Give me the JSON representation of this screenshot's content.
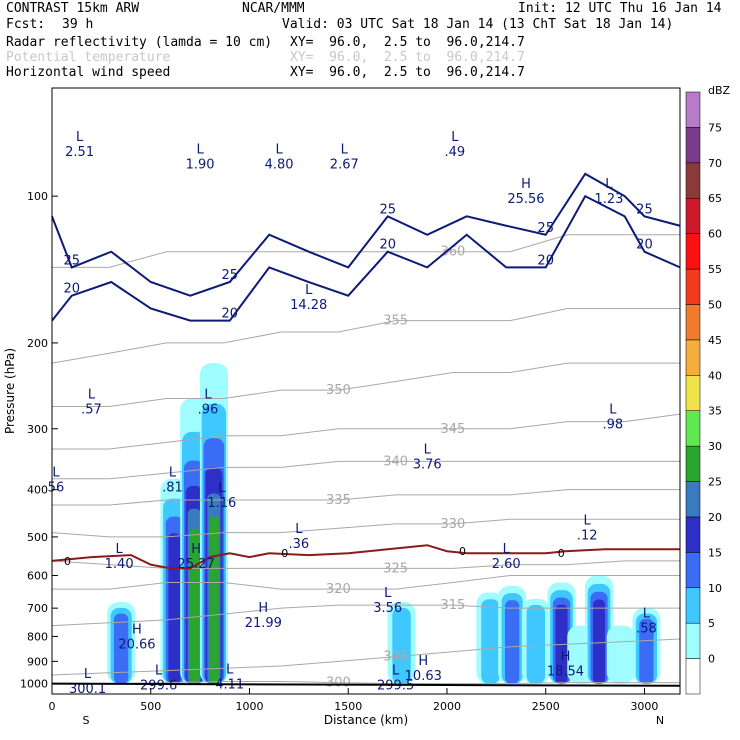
{
  "header": {
    "model": "CONTRAST 15km ARW",
    "institution": "NCAR/MMM",
    "init": "Init: 12 UTC Thu 16 Jan 14",
    "fcst_label": "Fcst:",
    "fcst_value": "39 h",
    "valid": "Valid: 03 UTC Sat 18 Jan 14 (13 ChT Sat 18 Jan 14)",
    "fields": [
      {
        "name": "Radar reflectivity (lamda = 10 cm)",
        "xy": "XY=  96.0,  2.5 to  96.0,214.7"
      },
      {
        "name": "Potential temperature",
        "xy": "XY=  96.0,  2.5 to  96.0,214.7"
      },
      {
        "name": "Horizontal wind speed",
        "xy": "XY=  96.0,  2.5 to  96.0,214.7"
      }
    ]
  },
  "chart_data": {
    "type": "heatmap",
    "xlabel": "Distance (km)",
    "ylabel": "Pressure (hPa)",
    "xlim": [
      0,
      3180
    ],
    "ylim": [
      1050,
      60
    ],
    "xticks": [
      0,
      500,
      1000,
      1500,
      2000,
      2500,
      3000
    ],
    "yticks": [
      100,
      200,
      300,
      400,
      500,
      600,
      700,
      800,
      900,
      1000
    ],
    "x_end_labels": {
      "left": "S",
      "right": "N"
    },
    "colorbar": {
      "unit": "dBZ",
      "levels": [
        0,
        5,
        10,
        15,
        20,
        25,
        30,
        35,
        40,
        45,
        50,
        55,
        60,
        65,
        70,
        75
      ],
      "colors": [
        "#ffffff",
        "#9ffcff",
        "#3fc8ff",
        "#3b6cf5",
        "#2d2fc7",
        "#3a7bbf",
        "#2aa52e",
        "#5fe84f",
        "#f0e24a",
        "#f5ae3c",
        "#f27a2e",
        "#f23a1d",
        "#ff1010",
        "#cc1a2a",
        "#8b3a3a",
        "#7b3b8b",
        "#b77bc7"
      ]
    },
    "reflectivity_columns": [
      {
        "x": 350,
        "p_top": 680,
        "p_bot": 1000,
        "max_dbz": 15
      },
      {
        "x": 620,
        "p_top": 380,
        "p_bot": 1000,
        "max_dbz": 20
      },
      {
        "x": 720,
        "p_top": 260,
        "p_bot": 1000,
        "max_dbz": 30
      },
      {
        "x": 820,
        "p_top": 220,
        "p_bot": 1000,
        "max_dbz": 30
      },
      {
        "x": 1770,
        "p_top": 680,
        "p_bot": 1000,
        "max_dbz": 10
      },
      {
        "x": 2220,
        "p_top": 650,
        "p_bot": 1000,
        "max_dbz": 10
      },
      {
        "x": 2330,
        "p_top": 630,
        "p_bot": 1000,
        "max_dbz": 15
      },
      {
        "x": 2450,
        "p_top": 670,
        "p_bot": 1000,
        "max_dbz": 10
      },
      {
        "x": 2580,
        "p_top": 620,
        "p_bot": 1000,
        "max_dbz": 20
      },
      {
        "x": 2680,
        "p_top": 760,
        "p_bot": 1000,
        "max_dbz": 5
      },
      {
        "x": 2770,
        "p_top": 600,
        "p_bot": 1000,
        "max_dbz": 20
      },
      {
        "x": 2880,
        "p_top": 760,
        "p_bot": 1000,
        "max_dbz": 5
      },
      {
        "x": 3010,
        "p_top": 700,
        "p_bot": 1000,
        "max_dbz": 15
      }
    ],
    "isentropes": [
      {
        "theta": 300,
        "p": [
          1000,
          1000,
          995,
          990,
          990,
          995,
          1000,
          1000,
          1000,
          995,
          995,
          995
        ],
        "label": "300"
      },
      {
        "theta": 305,
        "p": [
          960,
          950,
          940,
          930,
          920,
          900,
          880,
          860,
          840,
          830,
          820,
          810
        ],
        "label": "305"
      },
      {
        "theta": 315,
        "p": [
          760,
          750,
          740,
          720,
          700,
          690,
          690,
          690,
          700,
          700,
          700,
          700
        ],
        "label": "315"
      },
      {
        "theta": 320,
        "p": [
          640,
          640,
          620,
          620,
          640,
          640,
          640,
          620,
          600,
          600,
          600,
          600
        ],
        "label": "320"
      },
      {
        "theta": 325,
        "p": [
          560,
          570,
          580,
          580,
          580,
          580,
          580,
          580,
          570,
          570,
          560,
          560
        ],
        "label": "325"
      },
      {
        "theta": 330,
        "p": [
          490,
          500,
          500,
          490,
          490,
          480,
          470,
          470,
          460,
          460,
          460,
          460
        ],
        "label": "330"
      },
      {
        "theta": 335,
        "p": [
          430,
          430,
          420,
          420,
          420,
          420,
          410,
          410,
          410,
          400,
          400,
          400
        ],
        "label": "335"
      },
      {
        "theta": 340,
        "p": [
          380,
          380,
          370,
          360,
          360,
          350,
          350,
          350,
          350,
          350,
          350,
          350
        ],
        "label": "340"
      },
      {
        "theta": 345,
        "p": [
          330,
          330,
          320,
          310,
          310,
          300,
          300,
          300,
          300,
          290,
          290,
          280
        ],
        "label": "345"
      },
      {
        "theta": 350,
        "p": [
          270,
          270,
          260,
          260,
          250,
          250,
          240,
          230,
          230,
          220,
          220,
          220
        ],
        "label": "350"
      },
      {
        "theta": 355,
        "p": [
          220,
          210,
          200,
          200,
          190,
          190,
          180,
          180,
          180,
          170,
          170,
          170
        ],
        "label": "355"
      },
      {
        "theta": 360,
        "p": [
          140,
          140,
          130,
          130,
          130,
          130,
          130,
          130,
          130,
          120,
          120,
          120
        ],
        "label": "360"
      }
    ],
    "isentrope_x": [
      0,
      290,
      580,
      870,
      1160,
      1450,
      1740,
      2030,
      2320,
      2610,
      2900,
      3180
    ],
    "freezing_level": {
      "label": "0",
      "x": [
        0,
        200,
        400,
        500,
        600,
        700,
        800,
        900,
        1000,
        1100,
        1300,
        1500,
        1700,
        1900,
        2000,
        2100,
        2300,
        2500,
        2600,
        2800,
        3000,
        3180
      ],
      "p": [
        560,
        550,
        545,
        570,
        580,
        580,
        550,
        540,
        550,
        540,
        545,
        540,
        530,
        520,
        535,
        540,
        540,
        540,
        535,
        530,
        530,
        530
      ]
    },
    "wind_contours": [
      {
        "level": 20,
        "x": [
          0,
          100,
          300,
          500,
          700,
          900,
          1100,
          1300,
          1500,
          1700,
          1900,
          2100,
          2300,
          2500,
          2700,
          2900,
          3000,
          3180
        ],
        "p": [
          180,
          160,
          150,
          170,
          180,
          180,
          140,
          150,
          160,
          130,
          140,
          120,
          140,
          140,
          100,
          110,
          130,
          140
        ]
      },
      {
        "level": 25,
        "x": [
          0,
          100,
          300,
          500,
          700,
          900,
          1100,
          1300,
          1500,
          1700,
          1900,
          2100,
          2300,
          2500,
          2700,
          2900,
          3000,
          3180
        ],
        "p": [
          110,
          140,
          130,
          150,
          160,
          150,
          120,
          130,
          140,
          110,
          120,
          110,
          115,
          120,
          90,
          100,
          110,
          115
        ]
      }
    ],
    "annotations": [
      {
        "text": "L",
        "value": "2.51",
        "x": 140,
        "p": 80
      },
      {
        "text": "L",
        "value": "1.90",
        "x": 750,
        "p": 85
      },
      {
        "text": "L",
        "value": "4.80",
        "x": 1150,
        "p": 85
      },
      {
        "text": "L",
        "value": "2.67",
        "x": 1480,
        "p": 85
      },
      {
        "text": "L",
        "value": ".49",
        "x": 2040,
        "p": 80
      },
      {
        "text": "H",
        "value": "25.56",
        "x": 2400,
        "p": 100
      },
      {
        "text": "L",
        "value": "1.23",
        "x": 2820,
        "p": 100
      },
      {
        "text": "L",
        "value": "14.28",
        "x": 1300,
        "p": 165
      },
      {
        "text": "L",
        "value": ".57",
        "x": 200,
        "p": 270
      },
      {
        "text": "L",
        "value": ".96",
        "x": 790,
        "p": 270
      },
      {
        "text": "L",
        "value": ".98",
        "x": 2840,
        "p": 290
      },
      {
        "text": "L",
        "value": "3.76",
        "x": 1900,
        "p": 350
      },
      {
        "text": "L",
        "value": "56",
        "x": 20,
        "p": 390
      },
      {
        "text": "L",
        "value": ".81",
        "x": 610,
        "p": 390
      },
      {
        "text": "L",
        "value": "1.16",
        "x": 860,
        "p": 420
      },
      {
        "text": "L",
        "value": ".12",
        "x": 2710,
        "p": 490
      },
      {
        "text": "L",
        "value": ".36",
        "x": 1250,
        "p": 510
      },
      {
        "text": "L",
        "value": "1.40",
        "x": 340,
        "p": 560
      },
      {
        "text": "H",
        "value": "25.27",
        "x": 730,
        "p": 560
      },
      {
        "text": "L",
        "value": "2.60",
        "x": 2300,
        "p": 560
      },
      {
        "text": "L",
        "value": "3.56",
        "x": 1700,
        "p": 690
      },
      {
        "text": "H",
        "value": "21.99",
        "x": 1070,
        "p": 740
      },
      {
        "text": "L",
        "value": ".58",
        "x": 3010,
        "p": 760
      },
      {
        "text": "H",
        "value": "20.66",
        "x": 430,
        "p": 820
      },
      {
        "text": "H",
        "value": "18.54",
        "x": 2600,
        "p": 930
      },
      {
        "text": "H",
        "value": "10.63",
        "x": 1880,
        "p": 950
      },
      {
        "text": "L",
        "value": "4.11",
        "x": 900,
        "p": 990
      },
      {
        "text": "L",
        "value": "300.1",
        "x": 180,
        "p": 1010
      },
      {
        "text": "L",
        "value": "299.6",
        "x": 540,
        "p": 995
      },
      {
        "text": "L",
        "value": "299.5",
        "x": 1740,
        "p": 995
      }
    ],
    "grid": false
  }
}
